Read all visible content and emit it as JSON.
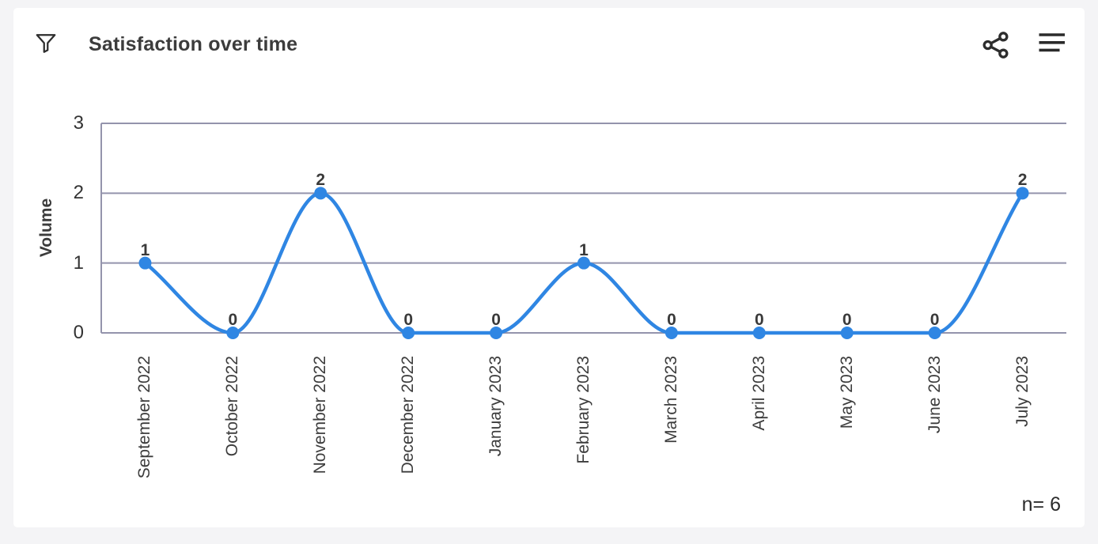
{
  "page": {
    "background": "#f4f4f6",
    "card_background": "#ffffff"
  },
  "header": {
    "title": "Satisfaction over time",
    "filter_icon": "funnel-filter",
    "share_icon": "share-nodes",
    "menu_icon": "hamburger-menu"
  },
  "footer": {
    "sample_size": "n= 6"
  },
  "chart_data": {
    "type": "line",
    "title": "Satisfaction over time",
    "ylabel": "Volume",
    "xlabel": "",
    "categories": [
      "September 2022",
      "October 2022",
      "November 2022",
      "December 2022",
      "January 2023",
      "February 2023",
      "March 2023",
      "April 2023",
      "May 2023",
      "June 2023",
      "July 2023"
    ],
    "series": [
      {
        "name": "Volume",
        "values": [
          1,
          0,
          2,
          0,
          0,
          1,
          0,
          0,
          0,
          0,
          2
        ]
      }
    ],
    "ylim": [
      0,
      3
    ],
    "yticks": [
      0,
      1,
      2,
      3
    ],
    "grid": true,
    "smooth": true,
    "show_point_labels": true,
    "legend_position": "none",
    "sample_size": 6,
    "colors": {
      "line": "#2f86e3",
      "point": "#2f86e3",
      "grid": "#9494ac",
      "axis": "#9494ac",
      "text": "#3a3a3a"
    }
  }
}
